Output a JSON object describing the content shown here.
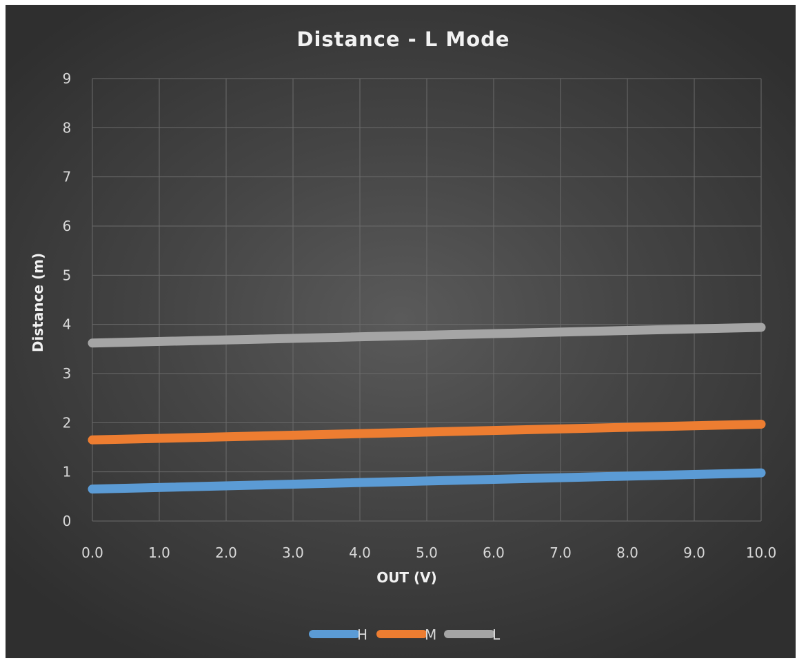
{
  "chart_data": {
    "type": "line",
    "title": "Distance - L Mode",
    "xlabel": "OUT (V)",
    "ylabel": "Distance (m)",
    "xlim": [
      0,
      10
    ],
    "ylim": [
      0,
      9
    ],
    "x_ticks": [
      "0.0",
      "1.0",
      "2.0",
      "3.0",
      "4.0",
      "5.0",
      "6.0",
      "7.0",
      "8.0",
      "9.0",
      "10.0"
    ],
    "y_ticks": [
      "0",
      "1",
      "2",
      "3",
      "4",
      "5",
      "6",
      "7",
      "8",
      "9"
    ],
    "grid": true,
    "legend_position": "bottom",
    "series": [
      {
        "name": "H",
        "color": "#5b9bd5",
        "x": [
          0,
          10
        ],
        "values": [
          0.65,
          0.98
        ]
      },
      {
        "name": "M",
        "color": "#ed7d31",
        "x": [
          0,
          10
        ],
        "values": [
          1.65,
          1.97
        ]
      },
      {
        "name": "L",
        "color": "#a5a5a5",
        "x": [
          0,
          10
        ],
        "values": [
          3.62,
          3.94
        ]
      }
    ]
  }
}
